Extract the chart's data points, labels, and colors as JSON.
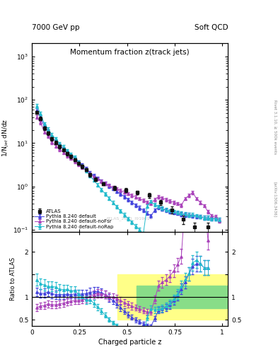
{
  "title_top_left": "7000 GeV pp",
  "title_top_right": "Soft QCD",
  "plot_title": "Momentum fraction z(track jets)",
  "ylabel_main": "1/N$_{jet}$ dN/dz",
  "ylabel_ratio": "Ratio to ATLAS",
  "xlabel": "Charged particle z",
  "right_label_main": "Rivet 3.1.10, ≥ 500k events",
  "right_label_arxiv": "[arXiv:1306.3436]",
  "watermark": "ATLAS_2011_I919017",
  "legend_entries": [
    "ATLAS",
    "Pythia 8.240 default",
    "Pythia 8.240 default-noFsr",
    "Pythia 8.240 default-noRap"
  ],
  "colors": {
    "atlas": "#111111",
    "pythia_default": "#4444dd",
    "pythia_noFsr": "#aa44bb",
    "pythia_noRap": "#22bbcc"
  },
  "atlas_x": [
    0.025,
    0.045,
    0.065,
    0.085,
    0.105,
    0.125,
    0.145,
    0.165,
    0.185,
    0.205,
    0.225,
    0.245,
    0.265,
    0.285,
    0.305,
    0.335,
    0.375,
    0.435,
    0.495,
    0.555,
    0.615,
    0.675,
    0.735,
    0.795,
    0.855,
    0.925
  ],
  "atlas_y": [
    52,
    37,
    22,
    17,
    12.5,
    10.2,
    8.3,
    7.0,
    5.7,
    4.9,
    4.1,
    3.45,
    2.9,
    2.45,
    1.85,
    1.45,
    1.15,
    0.92,
    0.82,
    0.72,
    0.62,
    0.43,
    0.29,
    0.175,
    0.115,
    0.115
  ],
  "atlas_yerr": [
    4,
    3.5,
    2,
    1.4,
    1.1,
    0.95,
    0.75,
    0.55,
    0.45,
    0.38,
    0.32,
    0.28,
    0.23,
    0.19,
    0.16,
    0.13,
    0.1,
    0.09,
    0.09,
    0.08,
    0.07,
    0.06,
    0.05,
    0.04,
    0.03,
    0.03
  ],
  "py_def_x": [
    0.025,
    0.045,
    0.065,
    0.085,
    0.105,
    0.125,
    0.145,
    0.165,
    0.185,
    0.205,
    0.225,
    0.245,
    0.265,
    0.285,
    0.305,
    0.325,
    0.345,
    0.365,
    0.385,
    0.405,
    0.425,
    0.445,
    0.465,
    0.485,
    0.505,
    0.525,
    0.545,
    0.565,
    0.585,
    0.605,
    0.625,
    0.645,
    0.665,
    0.685,
    0.705,
    0.725,
    0.745,
    0.765,
    0.785,
    0.805,
    0.825,
    0.845,
    0.865,
    0.885,
    0.905,
    0.925,
    0.945,
    0.965,
    0.985
  ],
  "py_def_y": [
    58,
    40,
    24,
    19,
    13.5,
    10.8,
    8.8,
    7.4,
    6.1,
    5.2,
    4.4,
    3.7,
    3.1,
    2.65,
    2.05,
    1.78,
    1.55,
    1.35,
    1.18,
    1.02,
    0.89,
    0.77,
    0.67,
    0.58,
    0.5,
    0.43,
    0.37,
    0.32,
    0.28,
    0.24,
    0.21,
    0.28,
    0.33,
    0.3,
    0.28,
    0.26,
    0.25,
    0.24,
    0.23,
    0.22,
    0.22,
    0.21,
    0.2,
    0.2,
    0.19,
    0.19,
    0.18,
    0.18,
    0.17
  ],
  "py_def_yerr": [
    5,
    3.5,
    2.2,
    1.7,
    1.2,
    0.95,
    0.8,
    0.65,
    0.52,
    0.44,
    0.37,
    0.31,
    0.26,
    0.22,
    0.18,
    0.15,
    0.13,
    0.11,
    0.1,
    0.09,
    0.08,
    0.07,
    0.06,
    0.055,
    0.05,
    0.043,
    0.037,
    0.032,
    0.028,
    0.024,
    0.021,
    0.028,
    0.033,
    0.03,
    0.028,
    0.026,
    0.025,
    0.024,
    0.023,
    0.022,
    0.022,
    0.021,
    0.02,
    0.02,
    0.019,
    0.019,
    0.018,
    0.018,
    0.017
  ],
  "py_noFsr_x": [
    0.025,
    0.045,
    0.065,
    0.085,
    0.105,
    0.125,
    0.145,
    0.165,
    0.185,
    0.205,
    0.225,
    0.245,
    0.265,
    0.285,
    0.305,
    0.325,
    0.345,
    0.365,
    0.385,
    0.405,
    0.425,
    0.445,
    0.465,
    0.485,
    0.505,
    0.525,
    0.545,
    0.565,
    0.585,
    0.605,
    0.625,
    0.645,
    0.665,
    0.685,
    0.705,
    0.725,
    0.745,
    0.765,
    0.785,
    0.805,
    0.825,
    0.845,
    0.865,
    0.885,
    0.905,
    0.925,
    0.945,
    0.965,
    0.985
  ],
  "py_noFsr_y": [
    40,
    30,
    18,
    14.5,
    10.5,
    8.5,
    7.1,
    6.1,
    5.1,
    4.5,
    3.8,
    3.2,
    2.75,
    2.35,
    1.9,
    1.68,
    1.5,
    1.32,
    1.18,
    1.05,
    0.96,
    0.88,
    0.81,
    0.74,
    0.68,
    0.62,
    0.57,
    0.52,
    0.48,
    0.43,
    0.4,
    0.5,
    0.58,
    0.54,
    0.5,
    0.46,
    0.43,
    0.4,
    0.37,
    0.52,
    0.62,
    0.72,
    0.52,
    0.42,
    0.36,
    0.26,
    0.21,
    0.2,
    0.16
  ],
  "py_noFsr_yerr": [
    4,
    2.8,
    1.7,
    1.3,
    0.95,
    0.77,
    0.64,
    0.55,
    0.46,
    0.4,
    0.34,
    0.28,
    0.24,
    0.2,
    0.16,
    0.14,
    0.13,
    0.11,
    0.1,
    0.09,
    0.08,
    0.075,
    0.07,
    0.065,
    0.06,
    0.055,
    0.05,
    0.046,
    0.042,
    0.038,
    0.035,
    0.044,
    0.051,
    0.048,
    0.044,
    0.041,
    0.038,
    0.035,
    0.033,
    0.046,
    0.055,
    0.064,
    0.046,
    0.037,
    0.032,
    0.023,
    0.019,
    0.018,
    0.014
  ],
  "py_noRap_x": [
    0.025,
    0.045,
    0.065,
    0.085,
    0.105,
    0.125,
    0.145,
    0.165,
    0.185,
    0.205,
    0.225,
    0.245,
    0.265,
    0.285,
    0.305,
    0.325,
    0.345,
    0.365,
    0.385,
    0.405,
    0.425,
    0.445,
    0.465,
    0.485,
    0.505,
    0.525,
    0.545,
    0.565,
    0.585,
    0.605,
    0.625,
    0.645,
    0.665,
    0.685,
    0.705,
    0.725,
    0.745,
    0.765,
    0.785,
    0.805,
    0.825,
    0.845,
    0.865,
    0.885,
    0.905,
    0.925,
    0.945,
    0.965,
    0.985
  ],
  "py_noRap_y": [
    72,
    48,
    28,
    21,
    15.5,
    12.5,
    9.8,
    8.2,
    6.7,
    5.6,
    4.7,
    3.7,
    2.9,
    2.3,
    1.75,
    1.38,
    1.08,
    0.85,
    0.67,
    0.53,
    0.42,
    0.34,
    0.27,
    0.22,
    0.18,
    0.15,
    0.12,
    0.1,
    0.08,
    0.35,
    0.44,
    0.38,
    0.34,
    0.31,
    0.29,
    0.27,
    0.26,
    0.25,
    0.24,
    0.23,
    0.22,
    0.22,
    0.21,
    0.2,
    0.19,
    0.19,
    0.18,
    0.18,
    0.17
  ],
  "py_noRap_yerr": [
    7,
    4.5,
    2.6,
    1.9,
    1.4,
    1.12,
    0.88,
    0.73,
    0.6,
    0.5,
    0.42,
    0.33,
    0.26,
    0.21,
    0.16,
    0.12,
    0.1,
    0.08,
    0.06,
    0.05,
    0.04,
    0.033,
    0.026,
    0.021,
    0.017,
    0.014,
    0.012,
    0.01,
    0.008,
    0.035,
    0.044,
    0.038,
    0.034,
    0.031,
    0.029,
    0.027,
    0.026,
    0.025,
    0.024,
    0.023,
    0.022,
    0.022,
    0.021,
    0.02,
    0.019,
    0.019,
    0.018,
    0.018,
    0.017
  ],
  "ylim_main": [
    0.09,
    2000
  ],
  "ylim_ratio": [
    0.37,
    2.45
  ],
  "xlim": [
    0.0,
    1.03
  ],
  "ratio_yticks": [
    0.5,
    1.0,
    1.5,
    2.0
  ],
  "ratio_ytick_labels": [
    "0.5",
    "1",
    "",
    "2"
  ]
}
